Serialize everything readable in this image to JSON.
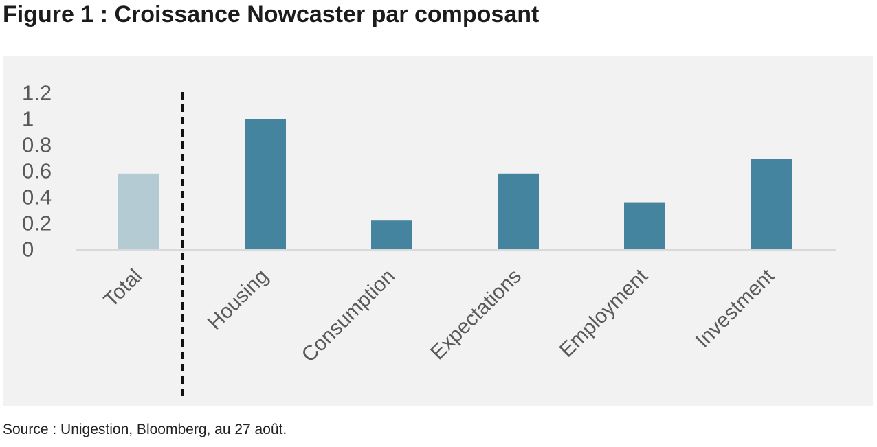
{
  "figure": {
    "title": "Figure 1 : Croissance Nowcaster par composant",
    "source": "Source : Unigestion, Bloomberg, au 27 août."
  },
  "colors": {
    "total_bar": "#b4cbd4",
    "component_bar": "#44849f",
    "divider": "#111111",
    "panel_background": "#f2f2f2"
  },
  "chart_data": {
    "type": "bar",
    "title": "",
    "xlabel": "",
    "ylabel": "",
    "categories": [
      "Total",
      "Housing",
      "Consumption",
      "Expectations",
      "Employment",
      "Investment"
    ],
    "values": [
      0.58,
      1.0,
      0.22,
      0.58,
      0.36,
      0.69
    ],
    "ylim": [
      0,
      1.2
    ],
    "yticks": [
      "0",
      "0.2",
      "0.4",
      "0.6",
      "0.8",
      "1",
      "1.2"
    ],
    "grid": false,
    "legend": "none",
    "divider_after_category": "Total"
  }
}
